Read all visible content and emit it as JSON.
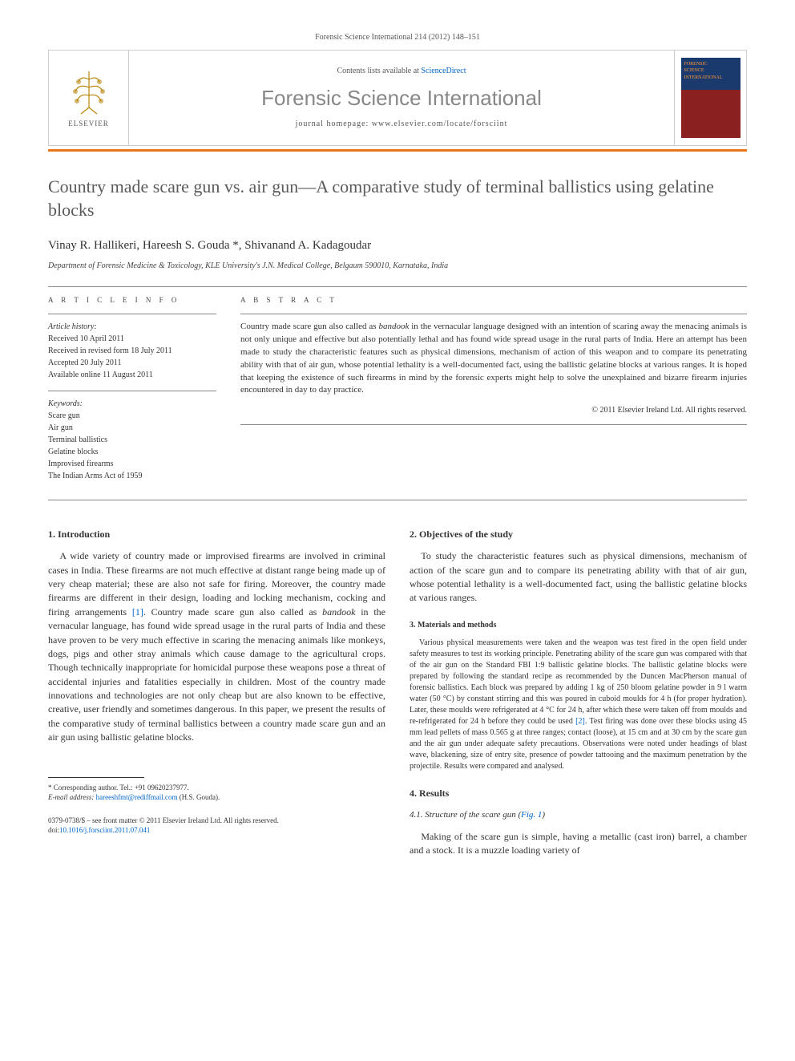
{
  "header": {
    "citation": "Forensic Science International 214 (2012) 148–151"
  },
  "masthead": {
    "contents_prefix": "Contents lists available at ",
    "contents_link": "ScienceDirect",
    "journal": "Forensic Science International",
    "homepage_prefix": "journal homepage: ",
    "homepage": "www.elsevier.com/locate/forsciint",
    "publisher_label": "ELSEVIER",
    "cover_text_top": "FORENSIC",
    "cover_text_mid": "SCIENCE",
    "cover_text_bot": "INTERNATIONAL"
  },
  "article": {
    "title": "Country made scare gun vs. air gun—A comparative study of terminal ballistics using gelatine blocks",
    "authors": "Vinay R. Hallikeri, Hareesh S. Gouda *, Shivanand A. Kadagoudar",
    "affiliation": "Department of Forensic Medicine & Toxicology, KLE University's J.N. Medical College, Belgaum 590010, Karnataka, India"
  },
  "info": {
    "heading": "A R T I C L E  I N F O",
    "history_label": "Article history:",
    "received": "Received 10 April 2011",
    "revised": "Received in revised form 18 July 2011",
    "accepted": "Accepted 20 July 2011",
    "online": "Available online 11 August 2011",
    "keywords_label": "Keywords:",
    "keywords": [
      "Scare gun",
      "Air gun",
      "Terminal ballistics",
      "Gelatine blocks",
      "Improvised firearms",
      "The Indian Arms Act of 1959"
    ]
  },
  "abstract": {
    "heading": "A B S T R A C T",
    "text": "Country made scare gun also called as bandook in the vernacular language designed with an intention of scaring away the menacing animals is not only unique and effective but also potentially lethal and has found wide spread usage in the rural parts of India. Here an attempt has been made to study the characteristic features such as physical dimensions, mechanism of action of this weapon and to compare its penetrating ability with that of air gun, whose potential lethality is a well-documented fact, using the ballistic gelatine blocks at various ranges. It is hoped that keeping the existence of such firearms in mind by the forensic experts might help to solve the unexplained and bizarre firearm injuries encountered in day to day practice.",
    "copyright": "© 2011 Elsevier Ireland Ltd. All rights reserved."
  },
  "sections": {
    "intro_h": "1. Introduction",
    "intro_p": "A wide variety of country made or improvised firearms are involved in criminal cases in India. These firearms are not much effective at distant range being made up of very cheap material; these are also not safe for firing. Moreover, the country made firearms are different in their design, loading and locking mechanism, cocking and firing arrangements [1]. Country made scare gun also called as bandook in the vernacular language, has found wide spread usage in the rural parts of India and these have proven to be very much effective in scaring the menacing animals like monkeys, dogs, pigs and other stray animals which cause damage to the agricultural crops. Though technically inappropriate for homicidal purpose these weapons pose a threat of accidental injuries and fatalities especially in children. Most of the country made innovations and technologies are not only cheap but are also known to be effective, creative, user friendly and sometimes dangerous. In this paper, we present the results of the comparative study of terminal ballistics between a country made scare gun and an air gun using ballistic gelatine blocks.",
    "obj_h": "2. Objectives of the study",
    "obj_p": "To study the characteristic features such as physical dimensions, mechanism of action of the scare gun and to compare its penetrating ability with that of air gun, whose potential lethality is a well-documented fact, using the ballistic gelatine blocks at various ranges.",
    "mat_h": "3. Materials and methods",
    "mat_p": "Various physical measurements were taken and the weapon was test fired in the open field under safety measures to test its working principle. Penetrating ability of the scare gun was compared with that of the air gun on the Standard FBI 1:9 ballistic gelatine blocks. The ballistic gelatine blocks were prepared by following the standard recipe as recommended by the Duncen MacPherson manual of forensic ballistics. Each block was prepared by adding 1 kg of 250 bloom gelatine powder in 9 l warm water (50 °C) by constant stirring and this was poured in cuboid moulds for 4 h (for proper hydration). Later, these moulds were refrigerated at 4 °C for 24 h, after which these were taken off from moulds and re-refrigerated for 24 h before they could be used [2]. Test firing was done over these blocks using 45 mm lead pellets of mass 0.565 g at three ranges; contact (loose), at 15 cm and at 30 cm by the scare gun and the air gun under adequate safety precautions. Observations were noted under headings of blast wave, blackening, size of entry site, presence of powder tattooing and the maximum penetration by the projectile. Results were compared and analysed.",
    "res_h": "4. Results",
    "res_sub_h": "4.1. Structure of the scare gun (Fig. 1)",
    "res_p": "Making of the scare gun is simple, having a metallic (cast iron) barrel, a chamber and a stock. It is a muzzle loading variety of"
  },
  "footnote": {
    "corr": "* Corresponding author. Tel.: +91 09620237977.",
    "email_label": "E-mail address: ",
    "email": "hareeshfmt@rediffmail.com",
    "email_suffix": " (H.S. Gouda)."
  },
  "footer": {
    "line1": "0379-0738/$ – see front matter © 2011 Elsevier Ireland Ltd. All rights reserved.",
    "doi_prefix": "doi:",
    "doi": "10.1016/j.forsciint.2011.07.041"
  },
  "colors": {
    "accent": "#e8761f",
    "link": "#0066cc",
    "title_grey": "#5a5a5a",
    "journal_grey": "#888888"
  }
}
